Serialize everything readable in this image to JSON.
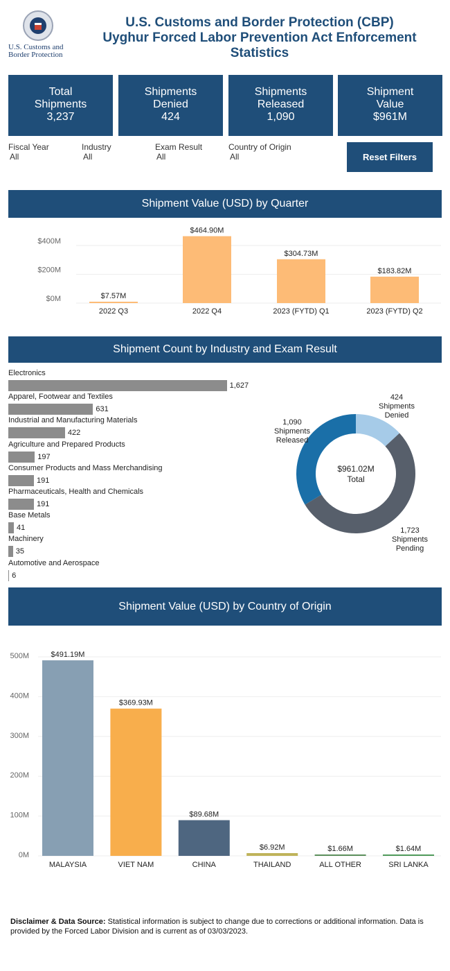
{
  "header": {
    "title_line1": "U.S. Customs and Border Protection (CBP)",
    "title_line2": "Uyghur Forced Labor Prevention Act Enforcement",
    "title_line3": "Statistics",
    "logo_text_line1": "U.S. Customs and",
    "logo_text_line2": "Border Protection"
  },
  "kpis": [
    {
      "label1": "Total",
      "label2": "Shipments",
      "value": "3,237"
    },
    {
      "label1": "Shipments",
      "label2": "Denied",
      "value": "424"
    },
    {
      "label1": "Shipments",
      "label2": "Released",
      "value": "1,090"
    },
    {
      "label1": "Shipment",
      "label2": "Value",
      "value": "$961M"
    }
  ],
  "filters": [
    {
      "label": "Fiscal Year",
      "value": "All"
    },
    {
      "label": "Industry",
      "value": "All"
    },
    {
      "label": "Exam Result",
      "value": "All"
    },
    {
      "label": "Country of Origin",
      "value": "All"
    }
  ],
  "reset_label": "Reset Filters",
  "colors": {
    "brand": "#1f4e79",
    "quarter_bar": "#fdbb76",
    "industry_bar": "#8c8c8c",
    "denied": "#a6cbe8",
    "pending": "#575f6b",
    "released": "#1a6fa8"
  },
  "chart_data": [
    {
      "type": "bar",
      "title": "Shipment Value (USD) by Quarter",
      "categories": [
        "2022 Q3",
        "2022 Q4",
        "2023 (FYTD) Q1",
        "2023 (FYTD) Q2"
      ],
      "values": [
        7.57,
        464.9,
        304.73,
        183.82
      ],
      "data_labels": [
        "$7.57M",
        "$464.90M",
        "$304.73M",
        "$183.82M"
      ],
      "yticks": [
        "$0M",
        "$200M",
        "$400M"
      ],
      "unit": "M USD",
      "grid": true
    },
    {
      "type": "bar",
      "orientation": "horizontal",
      "title": "Shipment Count by Industry and Exam Result",
      "categories": [
        "Electronics",
        "Apparel, Footwear and Textiles",
        "Industrial and Manufacturing Materials",
        "Agriculture and Prepared Products",
        "Consumer Products and Mass Merchandising",
        "Pharmaceuticals, Health and Chemicals",
        "Base Metals",
        "Machinery",
        "Automotive and Aerospace"
      ],
      "values": [
        1627,
        631,
        422,
        197,
        191,
        191,
        41,
        35,
        6
      ],
      "data_labels": [
        "1,627",
        "631",
        "422",
        "197",
        "191",
        "191",
        "41",
        "35",
        "6"
      ]
    },
    {
      "type": "pie",
      "donut": true,
      "center_label_1": "$961.02M",
      "center_label_2": "Total",
      "slices": [
        {
          "label": "Shipments Denied",
          "value": 424,
          "value_label": "424",
          "color": "#a6cbe8"
        },
        {
          "label": "Shipments Pending",
          "value": 1723,
          "value_label": "1,723",
          "color": "#575f6b"
        },
        {
          "label": "Shipments Released",
          "value": 1090,
          "value_label": "1,090",
          "color": "#1a6fa8"
        }
      ]
    },
    {
      "type": "bar",
      "title": "Shipment Value (USD) by Country of Origin",
      "categories": [
        "MALAYSIA",
        "VIET NAM",
        "CHINA",
        "THAILAND",
        "ALL OTHER",
        "SRI LANKA"
      ],
      "values": [
        491.19,
        369.93,
        89.68,
        6.92,
        1.66,
        1.64
      ],
      "data_labels": [
        "$491.19M",
        "$369.93M",
        "$89.68M",
        "$6.92M",
        "$1.66M",
        "$1.64M"
      ],
      "colors": [
        "#879fb3",
        "#f8ae4c",
        "#4e6680",
        "#bfb35a",
        "#5b8f5b",
        "#4f9a5a"
      ],
      "yticks": [
        "0M",
        "100M",
        "200M",
        "300M",
        "400M",
        "500M"
      ],
      "ylim": [
        0,
        500
      ],
      "grid": true
    }
  ],
  "disclaimer": {
    "bold": "Disclaimer & Data Source:",
    "text": " Statistical information is subject to change due to corrections or additional information. Data is provided by the Forced Labor Division and is current as of 03/03/2023."
  }
}
